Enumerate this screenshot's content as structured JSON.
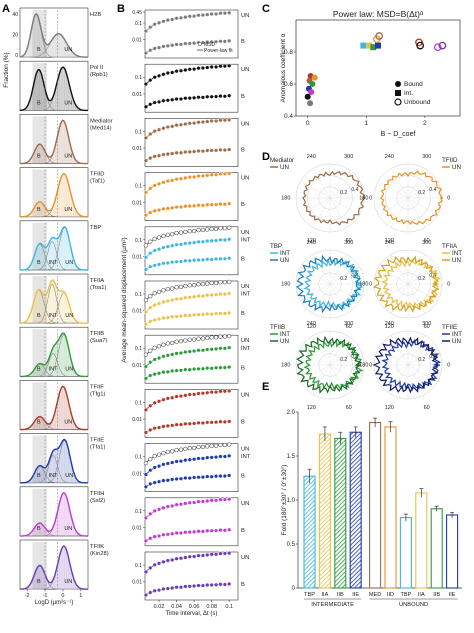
{
  "figure": {
    "panel_letters": [
      "A",
      "B",
      "C",
      "D",
      "E"
    ]
  },
  "chart_data": [
    {
      "panel": "A",
      "type": "area",
      "ylabel": "Fraction (%)",
      "xlabel": "LogD (µm²s⁻¹)",
      "x_ticks": [
        "-2",
        "-1",
        "0",
        "1"
      ],
      "y_ticks": [
        "40",
        "20",
        "0"
      ],
      "rows": [
        {
          "label": "H2B",
          "color": "#7a7a7a",
          "region_labels": [
            "B",
            "UN"
          ],
          "components": [
            {
              "mu": -1.5,
              "sigma": 0.28,
              "w": 1.0
            },
            {
              "mu": -0.25,
              "sigma": 0.45,
              "w": 0.55
            }
          ]
        },
        {
          "label": "Pol II\n(Rpb1)",
          "color": "#111111",
          "region_labels": [
            "B",
            "UN"
          ],
          "components": [
            {
              "mu": -1.35,
              "sigma": 0.3,
              "w": 0.85
            },
            {
              "mu": 0.0,
              "sigma": 0.35,
              "w": 0.9
            }
          ]
        },
        {
          "label": "Mediator\n(Med14)",
          "color": "#9c6b48",
          "region_labels": [
            "B",
            "UN"
          ],
          "components": [
            {
              "mu": -1.3,
              "sigma": 0.3,
              "w": 0.45
            },
            {
              "mu": 0.0,
              "sigma": 0.32,
              "w": 1.0
            }
          ]
        },
        {
          "label": "TFIID\n(Taf1)",
          "color": "#e8922a",
          "region_labels": [
            "B",
            "UN"
          ],
          "components": [
            {
              "mu": -1.3,
              "sigma": 0.3,
              "w": 0.35
            },
            {
              "mu": 0.05,
              "sigma": 0.35,
              "w": 1.0
            }
          ]
        },
        {
          "label": "TBP",
          "color": "#3fb6df",
          "region_labels": [
            "B",
            "INT",
            "UN"
          ],
          "components": [
            {
              "mu": -1.3,
              "sigma": 0.28,
              "w": 0.55
            },
            {
              "mu": -0.6,
              "sigma": 0.25,
              "w": 0.6
            },
            {
              "mu": 0.1,
              "sigma": 0.3,
              "w": 0.9
            }
          ]
        },
        {
          "label": "TFIIA\n(Toa1)",
          "color": "#e9c24a",
          "region_labels": [
            "B",
            "INT",
            "UN"
          ],
          "components": [
            {
              "mu": -1.35,
              "sigma": 0.3,
              "w": 0.6
            },
            {
              "mu": -0.6,
              "sigma": 0.25,
              "w": 0.7
            },
            {
              "mu": 0.05,
              "sigma": 0.3,
              "w": 0.55
            }
          ]
        },
        {
          "label": "TFIIB\n(Sua7)",
          "color": "#2e9a3c",
          "region_labels": [
            "B",
            "INT",
            "UN"
          ],
          "components": [
            {
              "mu": -1.3,
              "sigma": 0.28,
              "w": 0.3
            },
            {
              "mu": -0.55,
              "sigma": 0.25,
              "w": 0.55
            },
            {
              "mu": 0.05,
              "sigma": 0.3,
              "w": 1.0
            }
          ]
        },
        {
          "label": "TFIIF\n(Tfg1)",
          "color": "#b03a2a",
          "region_labels": [
            "B",
            "UN"
          ],
          "components": [
            {
              "mu": -1.3,
              "sigma": 0.3,
              "w": 0.3
            },
            {
              "mu": 0.0,
              "sigma": 0.33,
              "w": 1.0
            }
          ]
        },
        {
          "label": "TFIIE\n(Tfa1)",
          "color": "#1f3ba8",
          "region_labels": [
            "B",
            "INT",
            "UN"
          ],
          "components": [
            {
              "mu": -1.3,
              "sigma": 0.28,
              "w": 0.4
            },
            {
              "mu": -0.55,
              "sigma": 0.25,
              "w": 0.65
            },
            {
              "mu": 0.1,
              "sigma": 0.3,
              "w": 1.0
            }
          ]
        },
        {
          "label": "TFIIH\n(Ssl2)",
          "color": "#c03ad0",
          "region_labels": [
            "B",
            "UN"
          ],
          "components": [
            {
              "mu": -1.3,
              "sigma": 0.3,
              "w": 0.3
            },
            {
              "mu": 0.05,
              "sigma": 0.33,
              "w": 1.0
            }
          ]
        },
        {
          "label": "TFIIK\n(Kin28)",
          "color": "#6a3bb0",
          "region_labels": [
            "B",
            "UN"
          ],
          "components": [
            {
              "mu": -1.3,
              "sigma": 0.3,
              "w": 0.55
            },
            {
              "mu": 0.05,
              "sigma": 0.33,
              "w": 1.0
            }
          ]
        }
      ]
    },
    {
      "panel": "B",
      "type": "scatter",
      "ylabel": "Average mean-squared displacement (µm²)",
      "xlabel": "Time interval, Δt (s)",
      "x_ticks": [
        "0.02",
        "0.04",
        "0.06",
        "0.08",
        "0.1"
      ],
      "first_y_ticks": [
        "0.45",
        "0.1",
        "0.01"
      ],
      "y_ticks": [
        "0.1",
        "0.01"
      ],
      "legend": {
        "markers": "MSD",
        "line": "Power-law fit"
      },
      "rows": [
        {
          "protein": "H2B",
          "color": "#7a7a7a",
          "series": [
            {
              "label": "UN",
              "y0": 0.032,
              "alpha": 0.85,
              "open": false
            },
            {
              "label": "B",
              "y0": 0.0016,
              "alpha": 0.55,
              "open": false
            }
          ]
        },
        {
          "protein": "Pol II",
          "color": "#111111",
          "series": [
            {
              "label": "UN",
              "y0": 0.038,
              "alpha": 0.85,
              "open": false
            },
            {
              "label": "B",
              "y0": 0.0017,
              "alpha": 0.5,
              "open": false
            }
          ]
        },
        {
          "protein": "Mediator",
          "color": "#9c6b48",
          "series": [
            {
              "label": "UN",
              "y0": 0.04,
              "alpha": 0.84,
              "open": false
            },
            {
              "label": "B",
              "y0": 0.0018,
              "alpha": 0.5,
              "open": false
            }
          ]
        },
        {
          "protein": "TFIID",
          "color": "#e8922a",
          "series": [
            {
              "label": "UN",
              "y0": 0.038,
              "alpha": 0.88,
              "open": false
            },
            {
              "label": "B",
              "y0": 0.0017,
              "alpha": 0.52,
              "open": false
            }
          ]
        },
        {
          "protein": "TBP",
          "color": "#3fb6df",
          "series": [
            {
              "label": "UN",
              "y0": 0.045,
              "alpha": 0.82,
              "open": true
            },
            {
              "label": "INT",
              "y0": 0.009,
              "alpha": 0.82,
              "open": false
            },
            {
              "label": "B",
              "y0": 0.0017,
              "alpha": 0.5,
              "open": false
            }
          ]
        },
        {
          "protein": "TFIIA",
          "color": "#e9c24a",
          "series": [
            {
              "label": "UN",
              "y0": 0.042,
              "alpha": 0.85,
              "open": true
            },
            {
              "label": "INT",
              "y0": 0.0085,
              "alpha": 0.84,
              "open": false
            },
            {
              "label": "B",
              "y0": 0.0016,
              "alpha": 0.5,
              "open": false
            }
          ]
        },
        {
          "protein": "TFIIB",
          "color": "#2e9a3c",
          "series": [
            {
              "label": "UN",
              "y0": 0.04,
              "alpha": 0.86,
              "open": true
            },
            {
              "label": "INT",
              "y0": 0.008,
              "alpha": 0.86,
              "open": false
            },
            {
              "label": "B",
              "y0": 0.0016,
              "alpha": 0.5,
              "open": false
            }
          ]
        },
        {
          "protein": "TFIIF",
          "color": "#b03a2a",
          "series": [
            {
              "label": "UN",
              "y0": 0.035,
              "alpha": 0.88,
              "open": false
            },
            {
              "label": "B",
              "y0": 0.0016,
              "alpha": 0.5,
              "open": false
            }
          ]
        },
        {
          "protein": "TFIIE",
          "color": "#1f3ba8",
          "series": [
            {
              "label": "UN",
              "y0": 0.04,
              "alpha": 0.86,
              "open": true
            },
            {
              "label": "INT",
              "y0": 0.0085,
              "alpha": 0.85,
              "open": false
            },
            {
              "label": "B",
              "y0": 0.0016,
              "alpha": 0.5,
              "open": false
            }
          ]
        },
        {
          "protein": "TFIIH",
          "color": "#c03ad0",
          "series": [
            {
              "label": "UN",
              "y0": 0.037,
              "alpha": 0.87,
              "open": false
            },
            {
              "label": "B",
              "y0": 0.0016,
              "alpha": 0.5,
              "open": false
            }
          ]
        },
        {
          "protein": "TFIIK",
          "color": "#6a3bb0",
          "series": [
            {
              "label": "UN",
              "y0": 0.038,
              "alpha": 0.87,
              "open": false
            },
            {
              "label": "B",
              "y0": 0.0016,
              "alpha": 0.5,
              "open": false
            }
          ]
        }
      ]
    },
    {
      "panel": "C",
      "type": "scatter",
      "title": "Power law: MSD=B(Δt)ᵅ",
      "ylabel": "Anomalous coefficient α",
      "xlabel": "B ~ D_coef",
      "xlim": [
        -0.2,
        2.6
      ],
      "ylim": [
        0.4,
        1.0
      ],
      "x_ticks": [
        "0",
        "1",
        "2"
      ],
      "y_ticks": [
        "0.4",
        "0.6",
        "0.8"
      ],
      "legend": [
        "Bound",
        "Int.",
        "Unbound"
      ],
      "points": [
        {
          "x": 0.05,
          "y": 0.65,
          "color": "#b03a2a",
          "shape": "circle"
        },
        {
          "x": 0.12,
          "y": 0.64,
          "color": "#e8922a",
          "shape": "circle"
        },
        {
          "x": 0.03,
          "y": 0.62,
          "color": "#9c6b48",
          "shape": "circle"
        },
        {
          "x": 0.08,
          "y": 0.6,
          "color": "#2e9a3c",
          "shape": "circle"
        },
        {
          "x": 0.02,
          "y": 0.57,
          "color": "#1f3ba8",
          "shape": "circle"
        },
        {
          "x": 0.06,
          "y": 0.55,
          "color": "#c03ad0",
          "shape": "circle"
        },
        {
          "x": 0.0,
          "y": 0.52,
          "color": "#111111",
          "shape": "circle"
        },
        {
          "x": 0.04,
          "y": 0.48,
          "color": "#7a7a7a",
          "shape": "circle"
        },
        {
          "x": 0.95,
          "y": 0.84,
          "color": "#3fb6df",
          "shape": "square"
        },
        {
          "x": 1.05,
          "y": 0.84,
          "color": "#e9c24a",
          "shape": "square"
        },
        {
          "x": 1.12,
          "y": 0.83,
          "color": "#2e9a3c",
          "shape": "square"
        },
        {
          "x": 1.2,
          "y": 0.84,
          "color": "#1f3ba8",
          "shape": "square"
        },
        {
          "x": 1.18,
          "y": 0.88,
          "color": "#e8922a",
          "shape": "open"
        },
        {
          "x": 1.22,
          "y": 0.9,
          "color": "#9c6b48",
          "shape": "open"
        },
        {
          "x": 1.9,
          "y": 0.86,
          "color": "#b03a2a",
          "shape": "open"
        },
        {
          "x": 1.92,
          "y": 0.84,
          "color": "#111111",
          "shape": "open"
        },
        {
          "x": 2.22,
          "y": 0.83,
          "color": "#c03ad0",
          "shape": "open"
        },
        {
          "x": 2.3,
          "y": 0.84,
          "color": "#6a3bb0",
          "shape": "open"
        }
      ]
    },
    {
      "panel": "D",
      "type": "line",
      "angle_ticks": [
        "240",
        "300",
        "180",
        "0",
        "120",
        "60"
      ],
      "radial_ticks": [
        "0.2",
        "0.4"
      ],
      "plots": [
        {
          "side": "left",
          "legend_title": "Mediator",
          "series": [
            {
              "label": "UN",
              "color": "#9c6b48"
            }
          ]
        },
        {
          "side": "right",
          "legend_title": "TFIID",
          "series": [
            {
              "label": "UN",
              "color": "#e8922a"
            }
          ]
        },
        {
          "side": "left",
          "legend_title": "TBP",
          "series": [
            {
              "label": "INT",
              "color": "#3fb6df"
            },
            {
              "label": "UN",
              "color": "#1a7fbf"
            }
          ]
        },
        {
          "side": "right",
          "legend_title": "TFIIA",
          "series": [
            {
              "label": "INT",
              "color": "#e9c24a"
            },
            {
              "label": "UN",
              "color": "#d4a020"
            }
          ]
        },
        {
          "side": "left",
          "legend_title": "TFIIB",
          "series": [
            {
              "label": "INT",
              "color": "#2e9a3c"
            },
            {
              "label": "UN",
              "color": "#1c6a26"
            }
          ]
        },
        {
          "side": "right",
          "legend_title": "TFIIE",
          "series": [
            {
              "label": "INT",
              "color": "#1f3ba8"
            },
            {
              "label": "UN",
              "color": "#111a60"
            }
          ]
        }
      ]
    },
    {
      "panel": "E",
      "type": "bar",
      "ylabel": "Fold (180°±30° / 0°±30°)",
      "ylim": [
        0,
        2.0
      ],
      "y_ticks": [
        "0",
        "0.5",
        "1.0",
        "1.5",
        "2.0"
      ],
      "categories": [
        "TBP",
        "IIA",
        "IIB",
        "IIE",
        "MED",
        "IID",
        "TBP",
        "IIA",
        "IIB",
        "IIE"
      ],
      "values": [
        1.27,
        1.75,
        1.7,
        1.77,
        1.88,
        1.83,
        0.8,
        1.08,
        0.9,
        0.83
      ],
      "errors": [
        0.08,
        0.08,
        0.07,
        0.06,
        0.05,
        0.06,
        0.04,
        0.05,
        0.03,
        0.03
      ],
      "colors": [
        "#3fb6df",
        "#e9c24a",
        "#2e9a3c",
        "#1f3ba8",
        "#9c6b48",
        "#e8922a",
        "#3fb6df",
        "#e9c24a",
        "#2e9a3c",
        "#1f3ba8"
      ],
      "styles": [
        "hatched",
        "hatched",
        "hatched",
        "hatched",
        "open",
        "open",
        "open",
        "open",
        "open",
        "open"
      ],
      "groups": [
        "INTERMEDIATE",
        "UNBOUND"
      ]
    }
  ]
}
